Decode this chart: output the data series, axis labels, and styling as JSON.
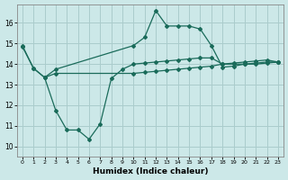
{
  "xlabel": "Humidex (Indice chaleur)",
  "background_color": "#cce8e8",
  "grid_color": "#aacccc",
  "line_color": "#1a6b5a",
  "xlim": [
    -0.5,
    23.5
  ],
  "ylim": [
    9.5,
    16.9
  ],
  "xticks": [
    0,
    1,
    2,
    3,
    4,
    5,
    6,
    7,
    8,
    9,
    10,
    11,
    12,
    13,
    14,
    15,
    16,
    17,
    18,
    19,
    20,
    21,
    22,
    23
  ],
  "yticks": [
    10,
    11,
    12,
    13,
    14,
    15,
    16
  ],
  "curve1_x": [
    0,
    1,
    2,
    3,
    10,
    11,
    12,
    13,
    14,
    15,
    16,
    17,
    18,
    19,
    20,
    21,
    22,
    23
  ],
  "curve1_y": [
    14.9,
    13.8,
    13.35,
    13.75,
    14.9,
    15.3,
    16.6,
    15.85,
    15.85,
    15.85,
    15.7,
    14.9,
    13.85,
    13.9,
    14.0,
    14.0,
    14.05,
    14.1
  ],
  "curve2_x": [
    0,
    1,
    2,
    3,
    4,
    5,
    6,
    7,
    8,
    9,
    10,
    11,
    12,
    13,
    14,
    15,
    16,
    17,
    18,
    19,
    20,
    21,
    22,
    23
  ],
  "curve2_y": [
    14.85,
    13.8,
    13.35,
    11.75,
    10.8,
    10.8,
    10.35,
    11.1,
    13.3,
    13.75,
    14.0,
    14.05,
    14.1,
    14.15,
    14.2,
    14.25,
    14.3,
    14.3,
    14.0,
    14.0,
    14.0,
    14.05,
    14.1,
    14.1
  ],
  "curve3_x": [
    2,
    3,
    10,
    11,
    12,
    13,
    14,
    15,
    16,
    17,
    18,
    19,
    20,
    21,
    22,
    23
  ],
  "curve3_y": [
    13.35,
    13.55,
    13.55,
    13.6,
    13.65,
    13.7,
    13.75,
    13.8,
    13.85,
    13.9,
    14.0,
    14.05,
    14.1,
    14.15,
    14.2,
    14.1
  ]
}
